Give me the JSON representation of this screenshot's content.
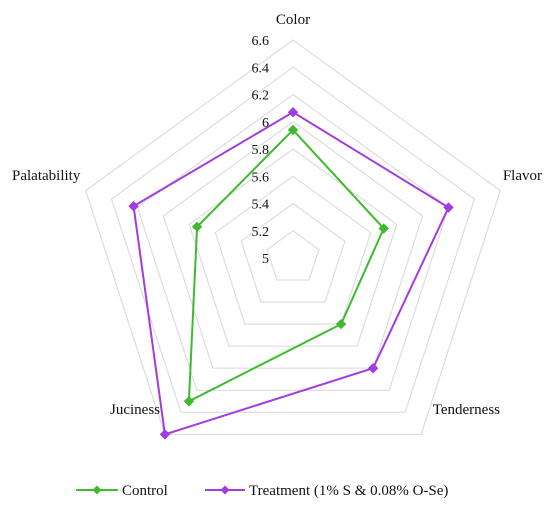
{
  "chart_data": {
    "type": "radar",
    "axes": [
      "Color",
      "Flavor",
      "Tenderness",
      "Juciness",
      "Palatability"
    ],
    "rlim": [
      5,
      6.6
    ],
    "ticks": [
      "5",
      "5.2",
      "5.4",
      "5.6",
      "5.8",
      "6",
      "6.2",
      "6.4",
      "6.6"
    ],
    "grid": true,
    "legend_position": "bottom",
    "series": [
      {
        "name": "Control",
        "color": "#3dbb2f",
        "values": [
          5.94,
          5.7,
          5.6,
          6.3,
          5.74
        ]
      },
      {
        "name": "Treatment (1% S & 0.08% O-Se)",
        "color": "#a23be0",
        "values": [
          6.07,
          6.2,
          6.0,
          6.6,
          6.23
        ]
      }
    ]
  }
}
